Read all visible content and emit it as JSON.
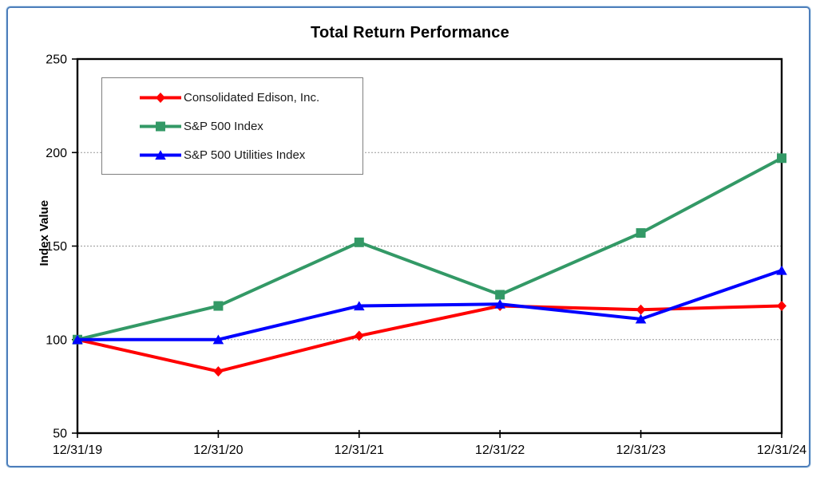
{
  "chart_data": {
    "type": "line",
    "title": "Total Return Performance",
    "ylabel": "Index Value",
    "xlabel": "",
    "categories": [
      "12/31/19",
      "12/31/20",
      "12/31/21",
      "12/31/22",
      "12/31/23",
      "12/31/24"
    ],
    "series": [
      {
        "name": "Consolidated Edison, Inc.",
        "color": "#FF0000",
        "marker": "diamond",
        "values": [
          100,
          83,
          102,
          118,
          116,
          118
        ]
      },
      {
        "name": "S&P 500 Index",
        "color": "#339966",
        "marker": "square",
        "values": [
          100,
          118,
          152,
          124,
          157,
          197
        ]
      },
      {
        "name": "S&P 500 Utilities Index",
        "color": "#0000FF",
        "marker": "triangle",
        "values": [
          100,
          100,
          118,
          119,
          111,
          137
        ]
      }
    ],
    "ylim": [
      50,
      250
    ],
    "yticks": [
      50,
      100,
      150,
      200,
      250
    ],
    "grid": "horizontal dashed at 100, 150, 200",
    "legend_position": "upper-left inside plot"
  },
  "style_colors": {
    "outer_border": "#4D7EBB",
    "axis": "#000000",
    "gridline": "#999999",
    "legend_border": "#7F7F7F",
    "tick_text": "#000000"
  }
}
